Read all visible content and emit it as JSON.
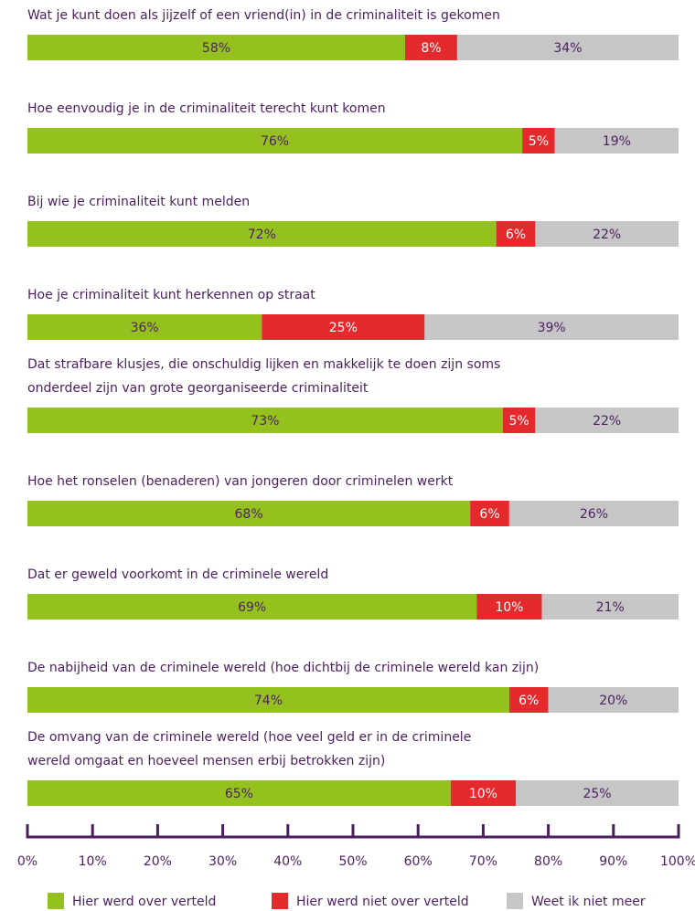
{
  "chart_data": {
    "type": "stacked-bar-horizontal",
    "categories": [
      [
        "Wat je kunt doen als jijzelf of een vriend(in) in de criminaliteit is gekomen"
      ],
      [
        "Hoe eenvoudig je in de criminaliteit terecht kunt komen"
      ],
      [
        "Bij wie je criminaliteit kunt melden"
      ],
      [
        "Hoe je criminaliteit kunt herkennen op straat"
      ],
      [
        "Dat strafbare klusjes, die onschuldig lijken en makkelijk te doen zijn soms",
        "onderdeel zijn van grote georganiseerde criminaliteit"
      ],
      [
        "Hoe het ronselen (benaderen) van jongeren door criminelen werkt"
      ],
      [
        "Dat er geweld voorkomt in de criminele wereld"
      ],
      [
        "De nabijheid van de criminele wereld (hoe dichtbij de criminele wereld kan zijn)"
      ],
      [
        "De omvang van de criminele wereld (hoe veel geld er in de criminele",
        "wereld omgaat en hoeveel mensen erbij betrokken zijn)"
      ]
    ],
    "series": [
      {
        "name": "Hier werd over verteld",
        "color": "#95c11f",
        "label_color": "#4b1f5e",
        "values": [
          58,
          76,
          72,
          36,
          73,
          68,
          69,
          74,
          65
        ],
        "value_labels": [
          "58%",
          "76%",
          "72%",
          "36%",
          "73%",
          "68%",
          "69%",
          "74%",
          "65%"
        ]
      },
      {
        "name": "Hier werd niet over verteld",
        "color": "#e52a2d",
        "label_color": "#ffffff",
        "values": [
          8,
          5,
          6,
          25,
          5,
          6,
          10,
          6,
          10
        ],
        "value_labels": [
          "8%",
          "5%",
          "6%",
          "25%",
          "5%",
          "6%",
          "10%",
          "6%",
          "10%"
        ]
      },
      {
        "name": "Weet ik niet meer",
        "color": "#c6c6c6",
        "label_color": "#4b1f5e",
        "values": [
          34,
          19,
          22,
          39,
          22,
          26,
          21,
          20,
          25
        ],
        "value_labels": [
          "34%",
          "19%",
          "22%",
          "39%",
          "22%",
          "26%",
          "21%",
          "20%",
          "25%"
        ]
      }
    ],
    "xlim": [
      0,
      100
    ],
    "xticks": [
      {
        "value": 0,
        "label": "0%"
      },
      {
        "value": 10,
        "label": "10%"
      },
      {
        "value": 20,
        "label": "20%"
      },
      {
        "value": 30,
        "label": "30%"
      },
      {
        "value": 40,
        "label": "40%"
      },
      {
        "value": 50,
        "label": "50%"
      },
      {
        "value": 60,
        "label": "60%"
      },
      {
        "value": 70,
        "label": "70%"
      },
      {
        "value": 80,
        "label": "80%"
      },
      {
        "value": 90,
        "label": "90%"
      },
      {
        "value": 100,
        "label": "100%"
      }
    ],
    "axis_color": "#4b1f5e",
    "legend": "bottom"
  }
}
